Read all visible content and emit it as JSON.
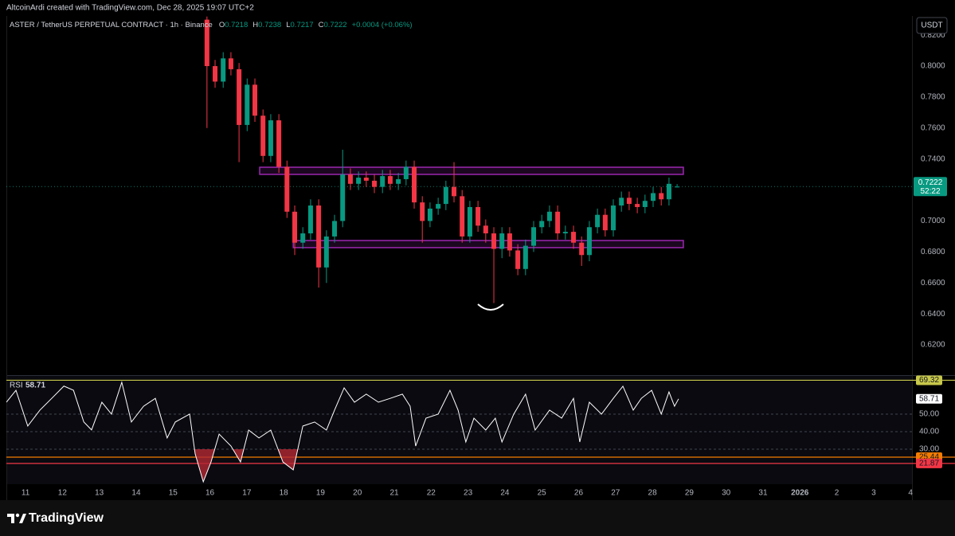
{
  "header": {
    "text": "AltcoinArdi created with TradingView.com, Dec 28, 2025 19:07 UTC+2"
  },
  "currency_button": "USDT",
  "legend": {
    "symbol": "ASTER / TetherUS PERPETUAL CONTRACT · 1h · Binance",
    "labels": [
      "O",
      "H",
      "L",
      "C"
    ],
    "values": [
      0.7218,
      0.7238,
      0.7217,
      0.7222
    ],
    "change": "+0.0004 (+0.06%)"
  },
  "chart_data": [
    {
      "type": "candlestick",
      "up_color": "#089981",
      "down_color": "#f23645",
      "x": [
        4.92,
        5.14,
        5.36,
        5.57,
        5.79,
        6.01,
        6.22,
        6.44,
        6.65,
        6.87,
        7.09,
        7.3,
        7.52,
        7.73,
        7.95,
        8.16,
        8.38,
        8.6,
        8.81,
        9.03,
        9.24,
        9.46,
        9.68,
        9.89,
        10.11,
        10.32,
        10.54,
        10.76,
        10.97,
        11.19,
        11.4,
        11.62,
        11.84,
        12.05,
        12.27,
        12.48,
        12.7,
        12.92,
        13.13,
        13.35,
        13.56,
        13.78,
        14.0,
        14.21,
        14.43,
        14.64,
        14.86,
        15.08,
        15.29,
        15.51,
        15.72,
        15.94,
        16.16,
        16.37,
        16.59,
        16.8,
        17.02,
        17.24,
        17.45,
        17.67
      ],
      "open": [
        0.83,
        0.8,
        0.79,
        0.805,
        0.798,
        0.762,
        0.788,
        0.768,
        0.742,
        0.765,
        0.735,
        0.706,
        0.686,
        0.692,
        0.71,
        0.67,
        0.69,
        0.7,
        0.73,
        0.724,
        0.728,
        0.726,
        0.722,
        0.729,
        0.724,
        0.727,
        0.735,
        0.712,
        0.7,
        0.708,
        0.711,
        0.722,
        0.716,
        0.69,
        0.709,
        0.697,
        0.692,
        0.682,
        0.692,
        0.681,
        0.669,
        0.684,
        0.696,
        0.7,
        0.706,
        0.692,
        0.693,
        0.686,
        0.678,
        0.696,
        0.704,
        0.694,
        0.71,
        0.715,
        0.711,
        0.709,
        0.713,
        0.718,
        0.714,
        0.7218
      ],
      "high": [
        0.832,
        0.804,
        0.809,
        0.809,
        0.802,
        0.792,
        0.792,
        0.772,
        0.769,
        0.769,
        0.739,
        0.71,
        0.696,
        0.714,
        0.714,
        0.694,
        0.704,
        0.746,
        0.734,
        0.732,
        0.732,
        0.73,
        0.733,
        0.733,
        0.731,
        0.739,
        0.739,
        0.716,
        0.712,
        0.715,
        0.726,
        0.738,
        0.72,
        0.713,
        0.713,
        0.701,
        0.696,
        0.696,
        0.696,
        0.685,
        0.688,
        0.7,
        0.704,
        0.71,
        0.71,
        0.697,
        0.697,
        0.69,
        0.7,
        0.708,
        0.708,
        0.714,
        0.719,
        0.719,
        0.715,
        0.717,
        0.722,
        0.722,
        0.728,
        0.7238
      ],
      "low": [
        0.76,
        0.786,
        0.786,
        0.794,
        0.738,
        0.758,
        0.764,
        0.738,
        0.738,
        0.731,
        0.702,
        0.678,
        0.682,
        0.688,
        0.657,
        0.66,
        0.686,
        0.696,
        0.72,
        0.72,
        0.722,
        0.718,
        0.718,
        0.72,
        0.72,
        0.723,
        0.708,
        0.686,
        0.696,
        0.704,
        0.707,
        0.712,
        0.686,
        0.686,
        0.693,
        0.686,
        0.647,
        0.676,
        0.677,
        0.665,
        0.665,
        0.68,
        0.692,
        0.696,
        0.688,
        0.688,
        0.682,
        0.671,
        0.674,
        0.692,
        0.69,
        0.69,
        0.706,
        0.707,
        0.705,
        0.705,
        0.709,
        0.71,
        0.71,
        0.7217
      ],
      "close": [
        0.8,
        0.79,
        0.805,
        0.798,
        0.762,
        0.788,
        0.768,
        0.742,
        0.765,
        0.735,
        0.706,
        0.686,
        0.692,
        0.71,
        0.67,
        0.69,
        0.7,
        0.73,
        0.724,
        0.728,
        0.726,
        0.722,
        0.729,
        0.724,
        0.727,
        0.735,
        0.712,
        0.7,
        0.708,
        0.711,
        0.722,
        0.716,
        0.69,
        0.709,
        0.697,
        0.692,
        0.682,
        0.692,
        0.681,
        0.669,
        0.684,
        0.696,
        0.7,
        0.706,
        0.692,
        0.693,
        0.686,
        0.678,
        0.696,
        0.704,
        0.694,
        0.71,
        0.715,
        0.711,
        0.709,
        0.713,
        0.718,
        0.714,
        0.724,
        0.7222
      ],
      "countdown": "52:22",
      "xlim": [
        -0.52,
        24.04
      ],
      "ylim": [
        0.601,
        0.8324
      ],
      "yticks": [
        {
          "value": 0.62,
          "label": "0.6200"
        },
        {
          "value": 0.64,
          "label": "0.6400"
        },
        {
          "value": 0.66,
          "label": "0.6600"
        },
        {
          "value": 0.68,
          "label": "0.6800"
        },
        {
          "value": 0.7,
          "label": "0.7000"
        },
        {
          "value": 0.72,
          "label": "0.7200"
        },
        {
          "value": 0.74,
          "label": "0.7400"
        },
        {
          "value": 0.76,
          "label": "0.7600"
        },
        {
          "value": 0.78,
          "label": "0.7800"
        },
        {
          "value": 0.8,
          "label": "0.8000"
        },
        {
          "value": 0.82,
          "label": "0.8200"
        }
      ],
      "zones": [
        {
          "low": 0.7301,
          "high": 0.7347,
          "x": [
            6.35,
            17.84
          ]
        },
        {
          "low": 0.6828,
          "high": 0.6874,
          "x": [
            7.26,
            17.84
          ]
        }
      ],
      "zone_color": "#9c27b0"
    },
    {
      "type": "line",
      "title": "RSI",
      "color": "#ffffff",
      "x": [
        -0.52,
        -0.26,
        0.06,
        0.39,
        0.71,
        1.04,
        1.3,
        1.58,
        1.79,
        2.07,
        2.33,
        2.61,
        2.87,
        3.2,
        3.52,
        3.84,
        4.06,
        4.45,
        4.6,
        4.82,
        5.03,
        5.25,
        5.57,
        5.83,
        6.05,
        6.33,
        6.65,
        6.98,
        7.26,
        7.52,
        7.84,
        8.16,
        8.38,
        8.64,
        8.92,
        9.24,
        9.57,
        9.89,
        10.22,
        10.43,
        10.58,
        10.86,
        11.19,
        11.51,
        11.73,
        11.94,
        12.16,
        12.48,
        12.74,
        12.92,
        13.24,
        13.56,
        13.82,
        14.21,
        14.54,
        14.86,
        15.03,
        15.29,
        15.62,
        15.94,
        16.2,
        16.48,
        16.7,
        16.98,
        17.24,
        17.45,
        17.6,
        17.71
      ],
      "values": [
        56.8,
        63.6,
        43.2,
        52.3,
        59,
        66,
        63.6,
        45.5,
        41,
        56.8,
        50,
        68.2,
        45.5,
        54.5,
        59,
        36.4,
        45.5,
        50,
        27.3,
        11.4,
        22.7,
        38.6,
        31.8,
        22.7,
        40.9,
        36.4,
        40.9,
        22.7,
        18.2,
        43.2,
        45.5,
        40.9,
        52.3,
        65,
        56.8,
        61.4,
        56.8,
        59,
        61.4,
        54.5,
        31.8,
        47.7,
        50,
        63.6,
        52.3,
        34.1,
        47.7,
        40.9,
        47.7,
        34.1,
        50,
        61.4,
        40.9,
        52.3,
        47.7,
        59,
        34.1,
        56.8,
        50,
        59,
        65.9,
        52.3,
        59,
        63.6,
        50,
        62.7,
        54.5,
        58.71
      ],
      "oversold_fill": "#b22833",
      "xlim": [
        -0.52,
        24.04
      ],
      "ylim": [
        10,
        71.8
      ],
      "yticks": [
        {
          "value": 30,
          "label": "30.00"
        },
        {
          "value": 40,
          "label": "40.00"
        },
        {
          "value": 50,
          "label": "50.00"
        }
      ],
      "levels": [
        {
          "value": 69.32,
          "color": "#c8c84a"
        },
        {
          "value": 25.44,
          "color": "#f57c00"
        },
        {
          "value": 21.87,
          "color": "#f23645"
        }
      ],
      "xticks": [
        {
          "value": 0,
          "label": "11"
        },
        {
          "value": 1,
          "label": "12"
        },
        {
          "value": 2,
          "label": "13"
        },
        {
          "value": 3,
          "label": "14"
        },
        {
          "value": 4,
          "label": "15"
        },
        {
          "value": 5,
          "label": "16"
        },
        {
          "value": 6,
          "label": "17"
        },
        {
          "value": 7,
          "label": "18"
        },
        {
          "value": 8,
          "label": "19"
        },
        {
          "value": 9,
          "label": "20"
        },
        {
          "value": 10,
          "label": "21"
        },
        {
          "value": 11,
          "label": "22"
        },
        {
          "value": 12,
          "label": "23"
        },
        {
          "value": 13,
          "label": "24"
        },
        {
          "value": 14,
          "label": "25"
        },
        {
          "value": 15,
          "label": "26"
        },
        {
          "value": 16,
          "label": "27"
        },
        {
          "value": 17,
          "label": "28"
        },
        {
          "value": 18,
          "label": "29"
        },
        {
          "value": 19,
          "label": "30"
        },
        {
          "value": 20,
          "label": "31"
        },
        {
          "value": 21,
          "label": "2026"
        },
        {
          "value": 22,
          "label": "2"
        },
        {
          "value": 23,
          "label": "3"
        },
        {
          "value": 24,
          "label": "4"
        }
      ]
    }
  ],
  "footer": {
    "brand": "TradingView"
  }
}
